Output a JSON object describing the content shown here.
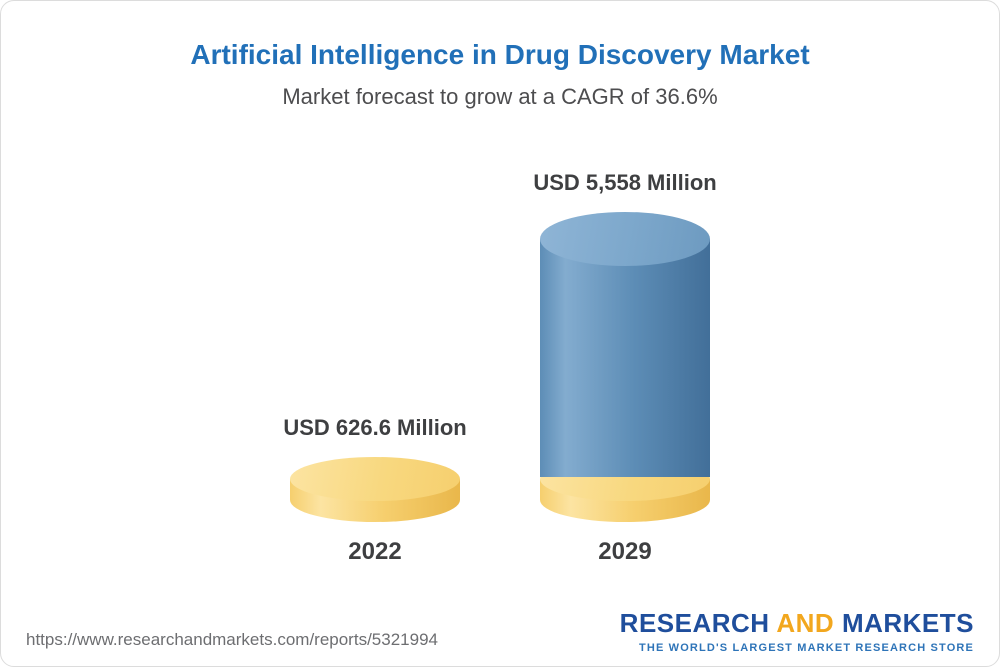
{
  "chart_data": {
    "type": "bar",
    "variant": "3d-cylinder-infographic",
    "title": "Artificial Intelligence in Drug Discovery Market",
    "subtitle": "Market forecast to grow at a CAGR of 36.6%",
    "cagr_percent": 36.6,
    "unit": "USD Million",
    "categories": [
      "2022",
      "2029"
    ],
    "values": [
      626.6,
      5558
    ],
    "value_labels": [
      "USD 626.6 Million",
      "USD 5,558 Million"
    ],
    "legend": "none",
    "axes": "none",
    "layout_hints": {
      "bar_2022_color": "gold",
      "bar_2029_color": "blue-on-gold-base",
      "grid": false
    }
  },
  "footer": {
    "url": "https://www.researchandmarkets.com/reports/5321994",
    "logo": {
      "word1": "RESEARCH",
      "word2": "AND",
      "word3": "MARKETS",
      "tagline": "THE WORLD'S LARGEST MARKET RESEARCH STORE"
    }
  },
  "colors": {
    "accent": "#2170b8",
    "subtitle_text": "#4d4d4f",
    "label_text": "#3e3f41",
    "url_text": "#6d6e71",
    "logo_navy": "#1f4e9c",
    "logo_gold": "#f2a71e",
    "logo_tagline_blue": "#2e74b8",
    "card_border": "#dcdcdc",
    "gold_top": "#f8d87f",
    "gold_light": "#fce4a2",
    "gold_mid": "#f6cf6e",
    "gold_dark": "#e9b74b",
    "blue_top": "#7ca7cb",
    "blue_light": "#83accf",
    "blue_mid": "#5d8db6",
    "blue_dark": "#426f99"
  }
}
